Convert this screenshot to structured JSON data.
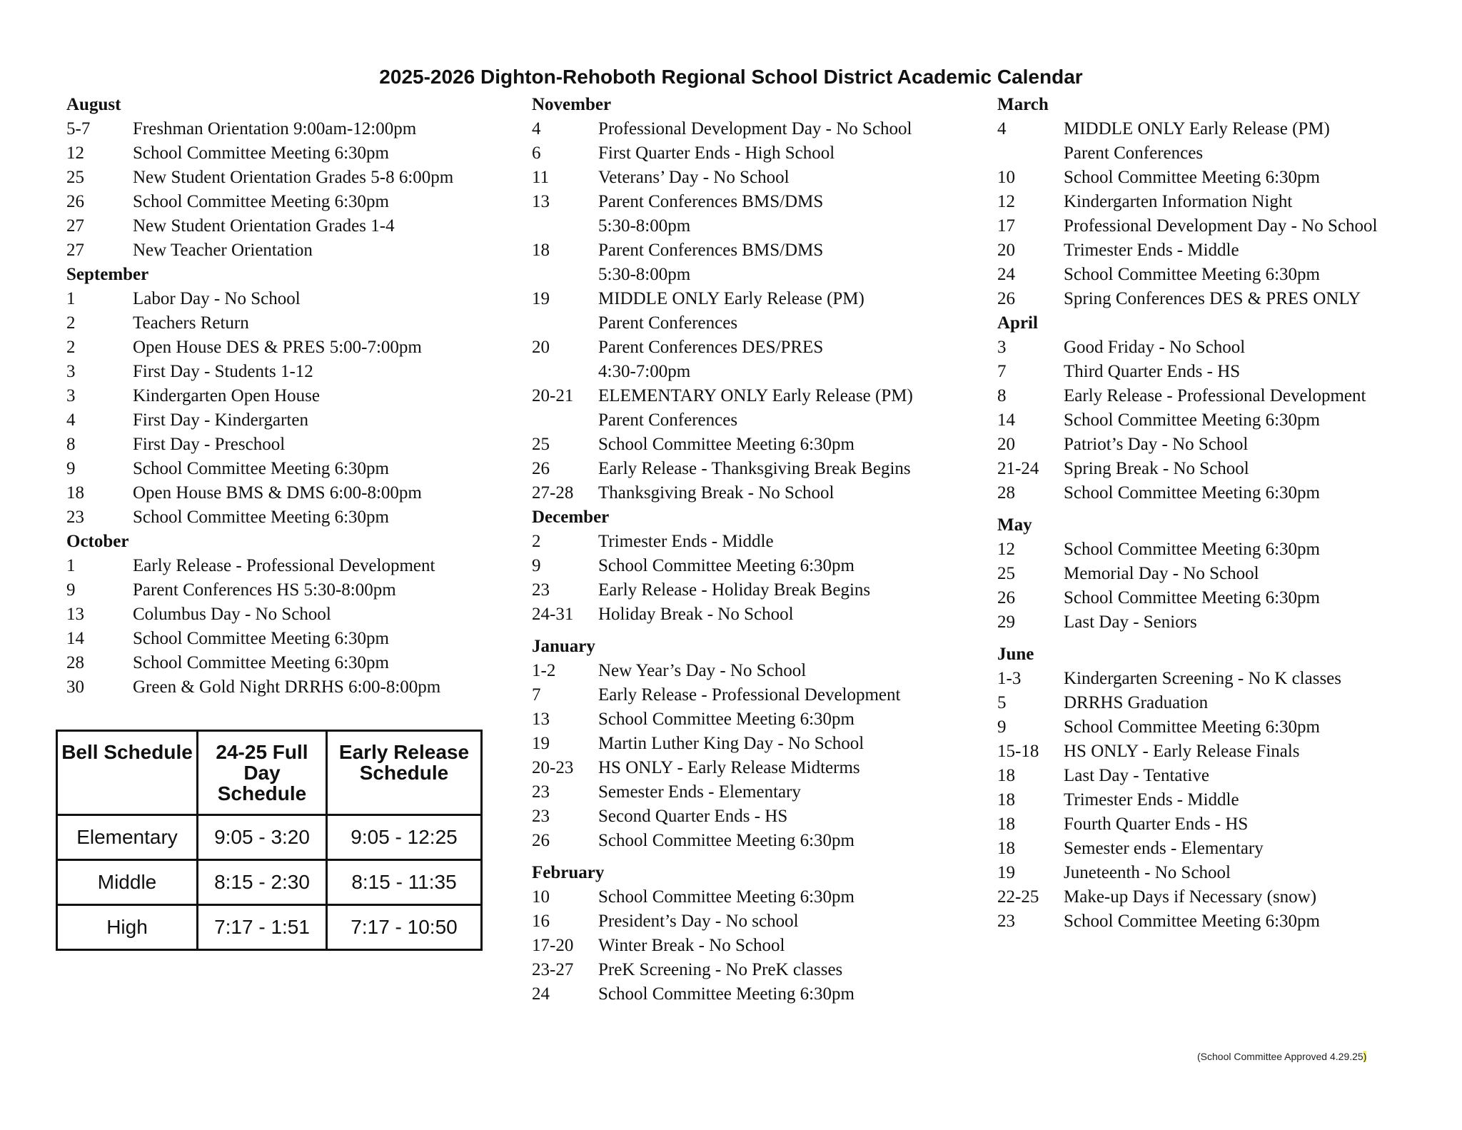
{
  "title": "2025-2026 Dighton-Rehoboth Regional School District Academic Calendar",
  "columns": [
    [
      {
        "month": "August",
        "events": [
          [
            "5-7",
            "Freshman Orientation 9:00am-12:00pm"
          ],
          [
            "12",
            "School Committee Meeting 6:30pm"
          ],
          [
            "25",
            "New Student Orientation Grades 5-8 6:00pm"
          ],
          [
            "26",
            "School Committee Meeting 6:30pm"
          ],
          [
            "27",
            "New Student Orientation Grades 1-4"
          ],
          [
            "27",
            "New Teacher Orientation"
          ]
        ]
      },
      {
        "month": "September",
        "events": [
          [
            "1",
            "Labor Day - No School"
          ],
          [
            "2",
            "Teachers Return"
          ],
          [
            "2",
            "Open House DES & PRES 5:00-7:00pm"
          ],
          [
            "3",
            "First Day - Students 1-12"
          ],
          [
            "3",
            "Kindergarten Open House"
          ],
          [
            "4",
            "First Day - Kindergarten"
          ],
          [
            "8",
            "First Day - Preschool"
          ],
          [
            "9",
            "School Committee Meeting 6:30pm"
          ],
          [
            "18",
            "Open House BMS & DMS 6:00-8:00pm"
          ],
          [
            "23",
            "School Committee Meeting 6:30pm"
          ]
        ]
      },
      {
        "month": "October",
        "events": [
          [
            "1",
            "Early Release - Professional Development"
          ],
          [
            "9",
            "Parent Conferences HS 5:30-8:00pm"
          ],
          [
            "13",
            "Columbus Day - No School"
          ],
          [
            "14",
            "School Committee Meeting 6:30pm"
          ],
          [
            "28",
            "School Committee Meeting 6:30pm"
          ],
          [
            "30",
            "Green & Gold Night DRRHS 6:00-8:00pm"
          ]
        ]
      }
    ],
    [
      {
        "month": "November",
        "events": [
          [
            "4",
            "Professional Development Day - No School"
          ],
          [
            "6",
            "First Quarter Ends - High School"
          ],
          [
            "11",
            "Veterans’ Day - No School"
          ],
          [
            "13",
            "Parent Conferences BMS/DMS"
          ],
          [
            "",
            "5:30-8:00pm"
          ],
          [
            "18",
            "Parent Conferences BMS/DMS"
          ],
          [
            "",
            "5:30-8:00pm"
          ],
          [
            "19",
            "MIDDLE ONLY Early Release (PM)"
          ],
          [
            "",
            "Parent Conferences"
          ],
          [
            "20",
            "Parent Conferences DES/PRES"
          ],
          [
            "",
            "4:30-7:00pm"
          ],
          [
            "20-21",
            "ELEMENTARY ONLY Early Release (PM)"
          ],
          [
            "",
            "Parent Conferences"
          ],
          [
            "25",
            "School Committee Meeting 6:30pm"
          ],
          [
            "26",
            "Early Release - Thanksgiving Break Begins"
          ],
          [
            "27-28",
            "Thanksgiving Break - No School"
          ]
        ]
      },
      {
        "month": "December",
        "events": [
          [
            "2",
            "Trimester Ends - Middle"
          ],
          [
            "9",
            "School Committee Meeting 6:30pm"
          ],
          [
            "23",
            "Early Release - Holiday Break Begins"
          ],
          [
            "24-31",
            "Holiday Break - No School"
          ]
        ]
      },
      {
        "month": "January",
        "events": [
          [
            "1-2",
            "New Year’s Day - No School"
          ],
          [
            "7",
            "Early Release - Professional Development"
          ],
          [
            "13",
            "School Committee Meeting 6:30pm"
          ],
          [
            "19",
            "Martin Luther King Day - No School"
          ],
          [
            "20-23",
            "HS ONLY - Early Release Midterms"
          ],
          [
            "23",
            "Semester Ends - Elementary"
          ],
          [
            "23",
            "Second Quarter Ends - HS"
          ],
          [
            "26",
            "School Committee Meeting 6:30pm"
          ]
        ]
      },
      {
        "month": "February",
        "events": [
          [
            "10",
            "School Committee Meeting 6:30pm"
          ],
          [
            "16",
            "President’s Day - No school"
          ],
          [
            "17-20",
            "Winter Break - No School"
          ],
          [
            "23-27",
            "PreK Screening - No PreK classes"
          ],
          [
            "24",
            "School Committee Meeting 6:30pm"
          ]
        ]
      }
    ],
    [
      {
        "month": "March",
        "events": [
          [
            "4",
            "MIDDLE ONLY Early Release (PM)"
          ],
          [
            "",
            "Parent Conferences"
          ],
          [
            "10",
            "School Committee Meeting 6:30pm"
          ],
          [
            "12",
            "Kindergarten Information Night"
          ],
          [
            "17",
            "Professional Development Day - No School"
          ],
          [
            "20",
            "Trimester Ends - Middle"
          ],
          [
            "24",
            "School Committee Meeting 6:30pm"
          ],
          [
            "26",
            "Spring Conferences DES & PRES ONLY"
          ]
        ]
      },
      {
        "month": "April",
        "events": [
          [
            " 3",
            "Good Friday - No School"
          ],
          [
            "7",
            "Third Quarter Ends - HS"
          ],
          [
            "8",
            "Early Release - Professional Development"
          ],
          [
            "14",
            "School Committee Meeting 6:30pm"
          ],
          [
            "20",
            "Patriot’s Day - No School"
          ],
          [
            "21-24",
            "Spring Break - No School"
          ],
          [
            "28",
            "School Committee Meeting 6:30pm"
          ]
        ]
      },
      {
        "month": "May",
        "events": [
          [
            "12",
            "School Committee Meeting 6:30pm"
          ],
          [
            "25",
            "Memorial Day - No School"
          ],
          [
            "26",
            "School Committee Meeting 6:30pm"
          ],
          [
            "29",
            "Last Day - Seniors"
          ]
        ]
      },
      {
        "month": "June",
        "events": [
          [
            "1-3",
            "Kindergarten Screening - No K classes"
          ],
          [
            "5",
            "DRRHS Graduation"
          ],
          [
            "9",
            "School Committee Meeting 6:30pm"
          ],
          [
            "15-18",
            "HS ONLY - Early Release Finals"
          ],
          [
            "18",
            "Last Day - Tentative"
          ],
          [
            "18",
            "Trimester Ends - Middle"
          ],
          [
            "18",
            "Fourth Quarter Ends - HS"
          ],
          [
            "18",
            "Semester ends - Elementary"
          ],
          [
            "19",
            "Juneteenth - No School"
          ],
          [
            "22-25",
            "Make-up Days if Necessary (snow)"
          ],
          [
            "23",
            "School Committee Meeting 6:30pm"
          ]
        ]
      }
    ]
  ],
  "bell_schedule": {
    "headers": [
      "Bell Schedule",
      "24-25 Full Day Schedule",
      "Early Release Schedule"
    ],
    "rows": [
      [
        "Elementary",
        "9:05 - 3:20",
        "9:05 - 12:25"
      ],
      [
        "Middle",
        "8:15 - 2:30",
        "8:15 - 11:35"
      ],
      [
        "High",
        "7:17 - 1:51",
        "7:17 - 10:50"
      ]
    ]
  },
  "footer": {
    "text": "(School Committee Approved 4.29.25",
    "close": ")",
    "highlight_color": "#f5f06a"
  }
}
